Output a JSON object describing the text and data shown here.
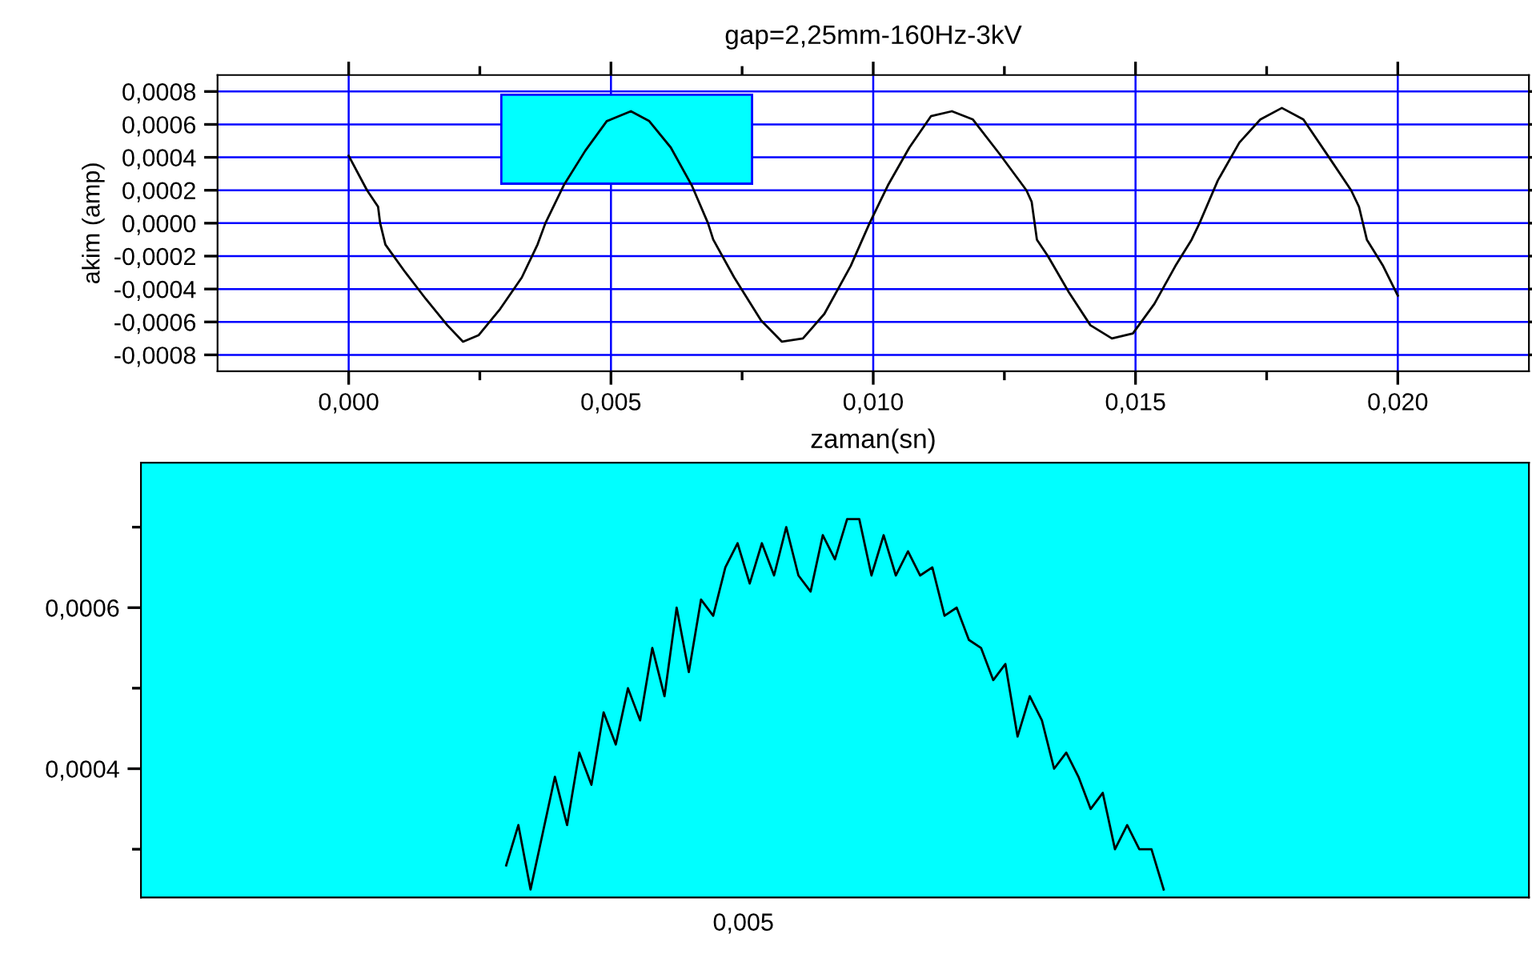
{
  "chart_data": [
    {
      "type": "line",
      "title": "gap=2,25mm-160Hz-3kV",
      "xlabel": "zaman(sn)",
      "ylabel": "akim (amp)",
      "xlim": [
        -0.0025,
        0.0225
      ],
      "ylim": [
        -0.0009,
        0.0009
      ],
      "xticks": [
        {
          "value": 0.0,
          "label": "0,000"
        },
        {
          "value": 0.0025,
          "label": null
        },
        {
          "value": 0.005,
          "label": "0,005"
        },
        {
          "value": 0.0075,
          "label": null
        },
        {
          "value": 0.01,
          "label": "0,010"
        },
        {
          "value": 0.0125,
          "label": null
        },
        {
          "value": 0.015,
          "label": "0,015"
        },
        {
          "value": 0.0175,
          "label": null
        },
        {
          "value": 0.02,
          "label": "0,020"
        }
      ],
      "yticks": [
        {
          "value": -0.0008,
          "label": "-0,0008"
        },
        {
          "value": -0.0006,
          "label": "-0,0006"
        },
        {
          "value": -0.0004,
          "label": "-0,0004"
        },
        {
          "value": -0.0002,
          "label": "-0,0002"
        },
        {
          "value": 0.0,
          "label": "0,0000"
        },
        {
          "value": 0.0002,
          "label": "0,0002"
        },
        {
          "value": 0.0004,
          "label": "0,0004"
        },
        {
          "value": 0.0006,
          "label": "0,0006"
        },
        {
          "value": 0.0008,
          "label": "0,0008"
        }
      ],
      "grid": true,
      "series": [
        {
          "color": "#000000",
          "x": [
            0,
            0.00035,
            0.00056,
            0.0006,
            0.0007,
            0.00106,
            0.00147,
            0.00188,
            0.00218,
            0.00248,
            0.00289,
            0.0033,
            0.0036,
            0.00375,
            0.0041,
            0.00451,
            0.00492,
            0.00538,
            0.00573,
            0.00614,
            0.00654,
            0.00685,
            0.00695,
            0.00735,
            0.00786,
            0.00826,
            0.00866,
            0.00907,
            0.00957,
            0.00993,
            0.01028,
            0.01069,
            0.0111,
            0.0115,
            0.0119,
            0.01241,
            0.01292,
            0.01302,
            0.01312,
            0.01333,
            0.01373,
            0.01414,
            0.01455,
            0.01495,
            0.01536,
            0.01576,
            0.01607,
            0.01622,
            0.01657,
            0.01698,
            0.01738,
            0.01779,
            0.0182,
            0.01871,
            0.01911,
            0.01926,
            0.01941,
            0.01972,
            0.02
          ],
          "values": [
            0.00041,
            0.0002,
            0.0001,
            0.0,
            -0.00013,
            -0.00029,
            -0.00046,
            -0.00062,
            -0.00072,
            -0.00068,
            -0.00052,
            -0.00033,
            -0.00013,
            0.0,
            0.00023,
            0.00044,
            0.00062,
            0.00068,
            0.00062,
            0.00046,
            0.00023,
            0.0,
            -0.0001,
            -0.00033,
            -0.00059,
            -0.00072,
            -0.0007,
            -0.00055,
            -0.00026,
            0.0,
            0.00023,
            0.00046,
            0.00065,
            0.00068,
            0.00063,
            0.00042,
            0.0002,
            0.00013,
            -0.0001,
            -0.0002,
            -0.00042,
            -0.00062,
            -0.0007,
            -0.00067,
            -0.00049,
            -0.00026,
            -0.0001,
            0.0,
            0.00026,
            0.00049,
            0.00063,
            0.0007,
            0.00063,
            0.00039,
            0.0002,
            0.0001,
            -0.0001,
            -0.00026,
            -0.00044
          ]
        }
      ]
    },
    {
      "type": "line",
      "ylim": [
        0.00024,
        0.00078
      ],
      "categories": [
        null,
        null,
        null,
        null,
        null,
        null,
        null,
        null,
        null,
        null,
        null,
        null,
        null,
        null,
        null,
        null,
        null,
        null,
        null,
        null,
        null,
        null,
        null,
        null,
        null,
        null,
        null,
        null,
        null,
        null,
        null,
        null,
        null,
        null,
        null,
        null,
        null,
        null,
        null,
        null,
        null,
        null,
        null,
        null,
        null,
        null,
        null,
        null,
        null,
        null,
        null,
        null,
        null,
        null,
        null,
        null,
        null,
        null,
        null,
        null,
        null,
        null,
        null,
        null,
        null,
        null,
        null,
        null,
        null,
        null,
        null,
        null,
        null,
        null,
        null,
        null,
        null,
        null,
        null,
        null,
        null,
        null,
        null,
        null,
        null,
        null,
        null,
        null,
        null,
        null,
        null,
        null,
        null,
        null,
        null,
        null,
        null,
        null,
        null,
        null,
        null,
        null,
        null,
        null,
        null,
        null,
        null,
        null,
        null,
        null,
        null,
        null,
        null,
        null,
        null
      ],
      "yticks": [
        {
          "value": 0.0003,
          "label": null
        },
        {
          "value": 0.0004,
          "label": "0,0004"
        },
        {
          "value": 0.0005,
          "label": null
        },
        {
          "value": 0.0006,
          "label": "0,0006"
        },
        {
          "value": 0.0007,
          "label": null
        }
      ],
      "annotations": [
        "0,005"
      ],
      "series": [
        {
          "color": "#000000",
          "values": [
            null,
            null,
            null,
            null,
            null,
            null,
            null,
            null,
            null,
            null,
            null,
            null,
            null,
            null,
            null,
            null,
            null,
            null,
            null,
            null,
            null,
            null,
            null,
            null,
            null,
            null,
            null,
            null,
            null,
            null,
            0.00028,
            0.00033,
            0.00025,
            0.00032,
            0.00039,
            0.00033,
            0.00042,
            0.00038,
            0.00047,
            0.00043,
            0.0005,
            0.00046,
            0.00055,
            0.00049,
            0.0006,
            0.00052,
            0.00061,
            0.00059,
            0.00065,
            0.00068,
            0.00063,
            0.00068,
            0.00064,
            0.0007,
            0.00064,
            0.00062,
            0.00069,
            0.00066,
            0.00071,
            0.00071,
            0.00064,
            0.00069,
            0.00064,
            0.00067,
            0.00064,
            0.00065,
            0.00059,
            0.0006,
            0.00056,
            0.00055,
            0.00051,
            0.00053,
            0.00044,
            0.00049,
            0.00046,
            0.0004,
            0.00042,
            0.00039,
            0.00035,
            0.00037,
            0.0003,
            0.00033,
            0.0003,
            0.0003,
            0.00025,
            null,
            null,
            null,
            null,
            null,
            null,
            null,
            null,
            null,
            null,
            null,
            null,
            null,
            null,
            null,
            null,
            null,
            null,
            null,
            null,
            null,
            null,
            null,
            null,
            null,
            null,
            null,
            null,
            null,
            null
          ]
        }
      ]
    }
  ]
}
